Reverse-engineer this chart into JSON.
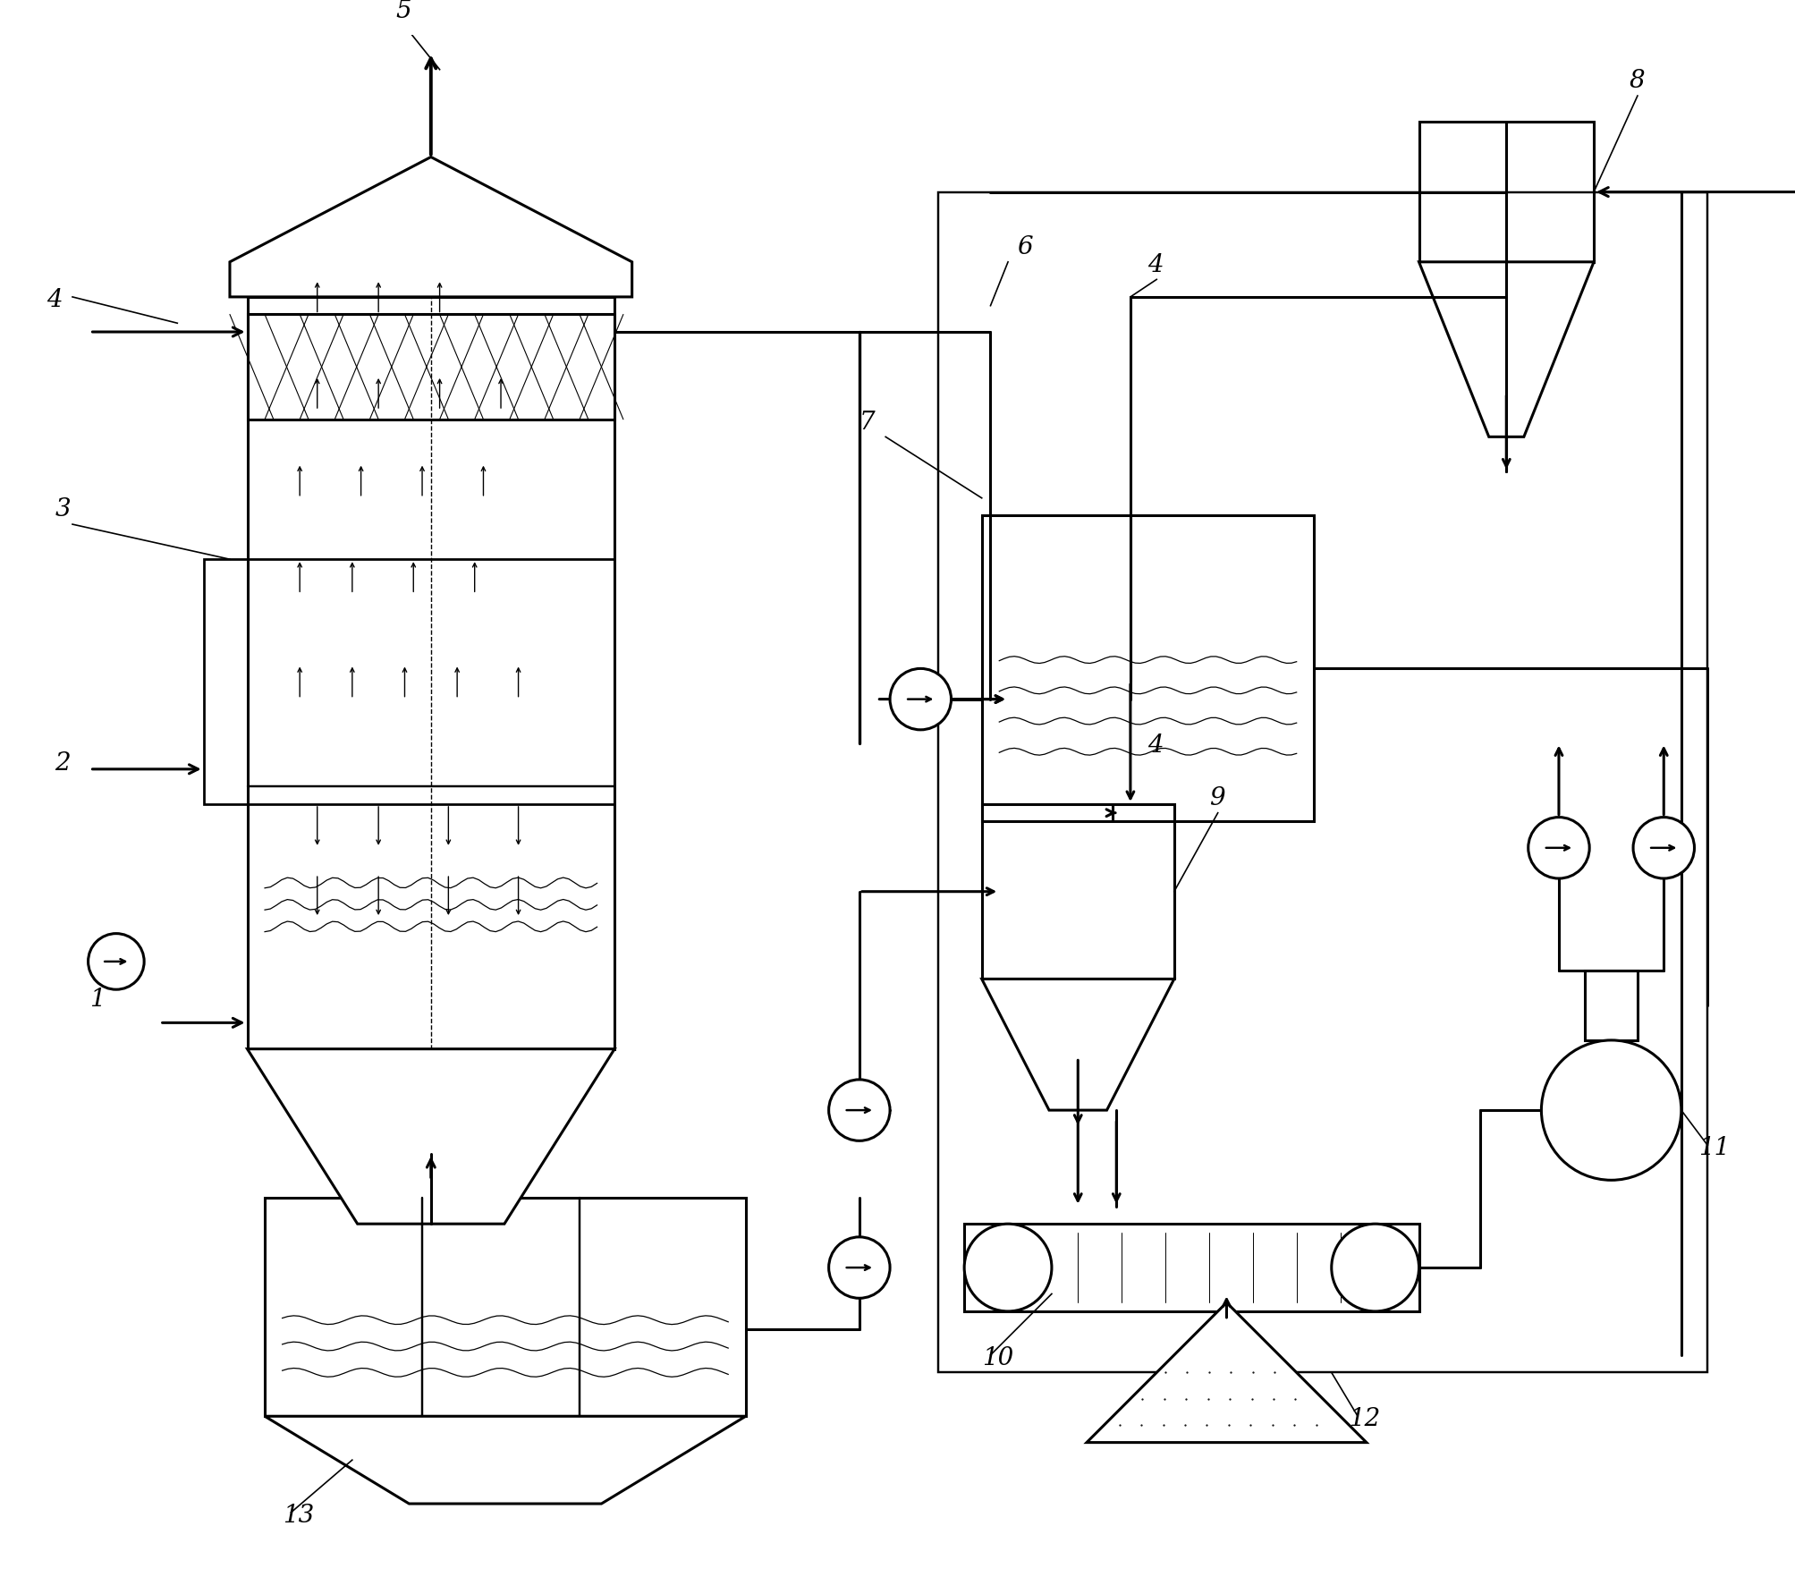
{
  "bg_color": "#ffffff",
  "line_color": "#000000",
  "lw": 2.2,
  "fig_width": 20.08,
  "fig_height": 17.83
}
